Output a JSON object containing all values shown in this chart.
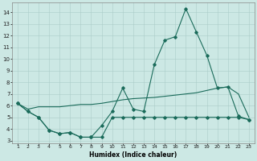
{
  "x": [
    1,
    2,
    3,
    4,
    5,
    6,
    7,
    8,
    9,
    10,
    11,
    12,
    13,
    14,
    15,
    16,
    17,
    18,
    19,
    20,
    21,
    22,
    23
  ],
  "line_main": [
    6.2,
    5.5,
    5.0,
    3.9,
    3.6,
    3.7,
    3.3,
    3.3,
    4.3,
    5.5,
    7.5,
    5.7,
    5.5,
    9.5,
    11.6,
    11.9,
    14.3,
    12.3,
    10.3,
    7.5,
    7.6,
    5.1,
    4.8
  ],
  "line_flat": [
    6.2,
    5.7,
    5.9,
    5.9,
    5.9,
    6.0,
    6.1,
    6.1,
    6.2,
    6.35,
    6.5,
    6.6,
    6.65,
    6.7,
    6.8,
    6.9,
    7.0,
    7.1,
    7.3,
    7.5,
    7.6,
    7.0,
    5.0
  ],
  "line_low": [
    6.2,
    5.5,
    5.0,
    3.9,
    3.6,
    3.7,
    3.3,
    3.3,
    3.3,
    5.0,
    5.0,
    5.0,
    5.0,
    5.0,
    5.0,
    5.0,
    5.0,
    5.0,
    5.0,
    5.0,
    5.0,
    5.0,
    4.8
  ],
  "ylim": [
    2.8,
    14.8
  ],
  "yticks": [
    3,
    4,
    5,
    6,
    7,
    8,
    9,
    10,
    11,
    12,
    13,
    14
  ],
  "xlim": [
    0.5,
    23.5
  ],
  "xticks": [
    1,
    2,
    3,
    4,
    5,
    6,
    7,
    8,
    9,
    10,
    11,
    12,
    13,
    14,
    15,
    16,
    17,
    18,
    19,
    20,
    21,
    22,
    23
  ],
  "xlabel": "Humidex (Indice chaleur)",
  "color": "#1a6b5a",
  "bg_color": "#cce8e4",
  "grid_color": "#aaccc8"
}
